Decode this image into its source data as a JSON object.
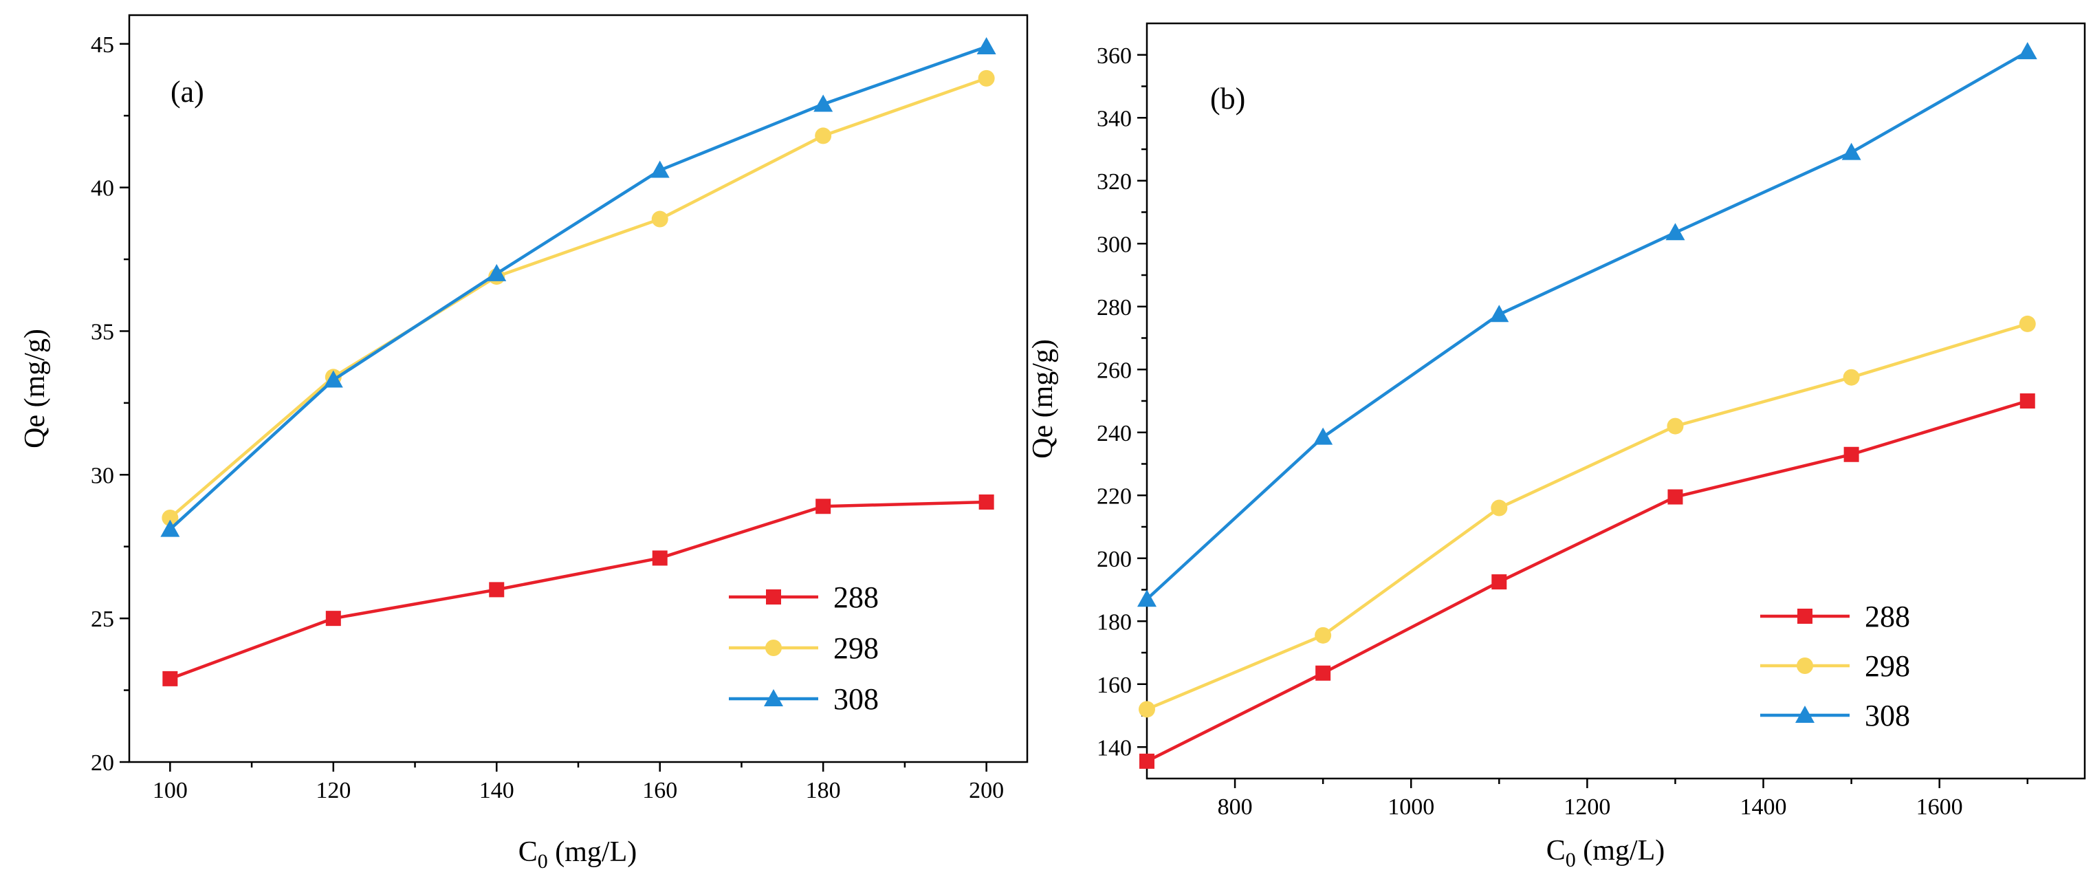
{
  "chart_data": [
    {
      "type": "line",
      "panel_label": "(a)",
      "xlabel_main": "C",
      "xlabel_sub": "0",
      "xlabel_unit": " (mg/L)",
      "ylabel": "Qe (mg/g)",
      "xlim": [
        95,
        205
      ],
      "ylim": [
        20,
        46
      ],
      "xticks": [
        100,
        120,
        140,
        160,
        180,
        200
      ],
      "xminor": [
        110,
        130,
        150,
        170,
        190
      ],
      "yticks": [
        20,
        25,
        30,
        35,
        40,
        45
      ],
      "legend_position": "bottom-right",
      "x": [
        100,
        120,
        140,
        160,
        180,
        200
      ],
      "series": [
        {
          "name": "288",
          "color": "#e8202a",
          "marker": "square",
          "values": [
            22.9,
            25.0,
            26.0,
            27.1,
            28.9,
            29.05
          ]
        },
        {
          "name": "298",
          "color": "#f9d65b",
          "marker": "circle",
          "values": [
            28.5,
            33.4,
            36.9,
            38.9,
            41.8,
            43.8
          ]
        },
        {
          "name": "308",
          "color": "#1f8ad6",
          "marker": "triangle",
          "values": [
            28.1,
            33.3,
            37.0,
            40.6,
            42.9,
            44.9
          ]
        }
      ]
    },
    {
      "type": "line",
      "panel_label": "(b)",
      "xlabel_main": "C",
      "xlabel_sub": "0",
      "xlabel_unit": " (mg/L)",
      "ylabel": "Qe (mg/g)",
      "xlim": [
        700,
        1765
      ],
      "ylim": [
        130,
        370
      ],
      "xticks": [
        800,
        1000,
        1200,
        1400,
        1600
      ],
      "xminor": [
        900,
        1100,
        1300,
        1500,
        1700
      ],
      "yticks": [
        140,
        160,
        180,
        200,
        220,
        240,
        260,
        280,
        300,
        320,
        340,
        360
      ],
      "legend_position": "bottom-right",
      "x": [
        700,
        900,
        1100,
        1300,
        1500,
        1700
      ],
      "series": [
        {
          "name": "288",
          "color": "#e8202a",
          "marker": "square",
          "values": [
            135.5,
            163.5,
            192.5,
            219.5,
            233.0,
            250.0
          ]
        },
        {
          "name": "298",
          "color": "#f9d65b",
          "marker": "circle",
          "values": [
            152.0,
            175.5,
            216.0,
            242.0,
            257.5,
            274.5
          ]
        },
        {
          "name": "308",
          "color": "#1f8ad6",
          "marker": "triangle",
          "values": [
            187.0,
            238.5,
            277.5,
            303.5,
            329.0,
            361.0
          ]
        }
      ]
    }
  ]
}
